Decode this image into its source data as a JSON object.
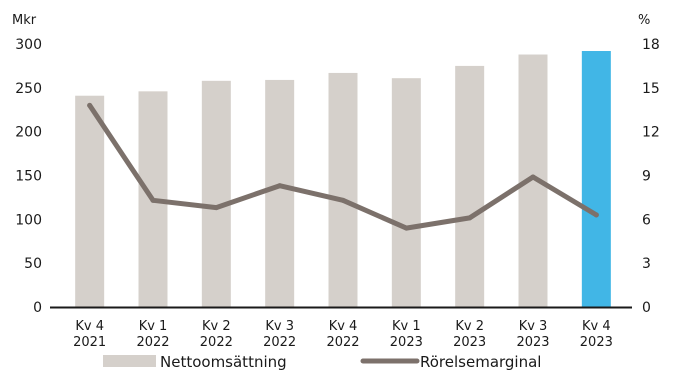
{
  "chart_data": {
    "type": "bar",
    "left_unit": "Mkr",
    "right_unit": "%",
    "categories": [
      [
        "Kv 4",
        "2021"
      ],
      [
        "Kv 1",
        "2022"
      ],
      [
        "Kv 2",
        "2022"
      ],
      [
        "Kv 3",
        "2022"
      ],
      [
        "Kv 4",
        "2022"
      ],
      [
        "Kv 1",
        "2023"
      ],
      [
        "Kv 2",
        "2023"
      ],
      [
        "Kv 3",
        "2023"
      ],
      [
        "Kv 4",
        "2023"
      ]
    ],
    "ylim": [
      0,
      300
    ],
    "yticks": [
      0,
      50,
      100,
      150,
      200,
      250,
      300
    ],
    "y2lim": [
      0,
      18
    ],
    "y2ticks": [
      0,
      3,
      6,
      9,
      12,
      15,
      18
    ],
    "series": [
      {
        "name": "Nettoomsättning",
        "kind": "bar",
        "axis": "left",
        "values": [
          241,
          246,
          258,
          259,
          267,
          261,
          275,
          288,
          292
        ],
        "color": "#d5d0cb",
        "highlight_index": 8,
        "highlight_color": "#41b6e6"
      },
      {
        "name": "Rörelsemarginal",
        "kind": "line",
        "axis": "right",
        "values": [
          13.8,
          7.3,
          6.8,
          8.3,
          7.3,
          5.4,
          6.1,
          8.9,
          6.3
        ],
        "color": "#7c716b"
      }
    ],
    "legend_position": "bottom",
    "grid": false
  }
}
